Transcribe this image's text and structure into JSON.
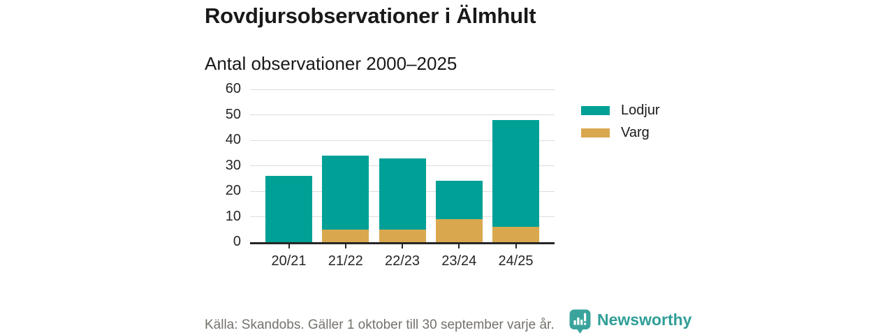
{
  "header": {
    "title": "Rovdjursobservationer i Älmhult",
    "subtitle": "Antal observationer 2000–2025"
  },
  "chart_data": {
    "type": "bar",
    "stacked": true,
    "title": "Rovdjursobservationer i Älmhult",
    "subtitle": "Antal observationer 2000–2025",
    "categories": [
      "20/21",
      "21/22",
      "22/23",
      "23/24",
      "24/25"
    ],
    "series": [
      {
        "name": "Lodjur",
        "color": "#00a096",
        "values": [
          26,
          29,
          28,
          15,
          42
        ]
      },
      {
        "name": "Varg",
        "color": "#d9a84e",
        "values": [
          0,
          5,
          5,
          9,
          6
        ]
      }
    ],
    "stack_order_bottom_to_top": [
      "Varg",
      "Lodjur"
    ],
    "totals": [
      26,
      34,
      33,
      24,
      48
    ],
    "xlabel": "",
    "ylabel": "",
    "ylim": [
      0,
      60
    ],
    "yticks": [
      0,
      10,
      20,
      30,
      40,
      50,
      60
    ],
    "grid": true,
    "grid_color": "#dcdcdc",
    "axis_color": "#262626",
    "legend_position": "right"
  },
  "legend": {
    "items": [
      {
        "label": "Lodjur",
        "color": "#00a096"
      },
      {
        "label": "Varg",
        "color": "#d9a84e"
      }
    ]
  },
  "footer": {
    "source": "Källa: Skandobs. Gäller 1 oktober till 30 september varje år.",
    "brand": "Newsworthy",
    "brand_color": "#2f9e97"
  }
}
